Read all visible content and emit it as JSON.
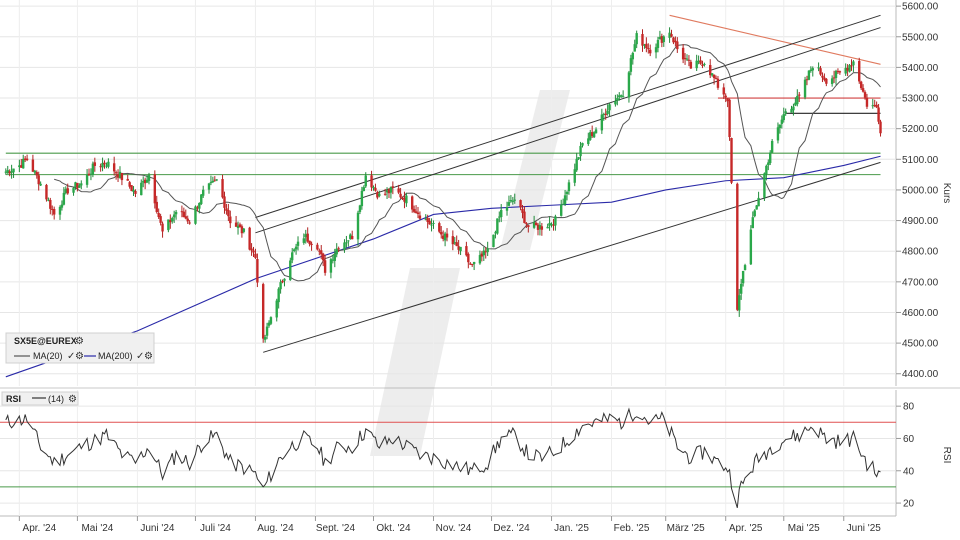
{
  "chart_data": [
    {
      "type": "candlestick",
      "instrument": "SX5E@EUREX",
      "ylabel": "Kurs",
      "ylim": [
        4360,
        5620
      ],
      "y_ticks": [
        "4400.00",
        "4500.00",
        "4600.00",
        "4700.00",
        "4800.00",
        "4900.00",
        "5000.00",
        "5100.00",
        "5200.00",
        "5300.00",
        "5400.00",
        "5500.00",
        "5600.00"
      ],
      "x_ticks": [
        "Apr. '24",
        "Mai '24",
        "Juni '24",
        "Juli '24",
        "Aug. '24",
        "Sept. '24",
        "Okt. '24",
        "Nov. '24",
        "Dez. '24",
        "Jan. '25",
        "Feb. '25",
        "März '25",
        "Apr. '25",
        "Mai '25",
        "Juni '25"
      ],
      "legend": [
        {
          "label": "MA(20)",
          "color": "#555555"
        },
        {
          "label": "MA(200)",
          "color": "#2a2aa8"
        }
      ],
      "price_path": [
        [
          "2024-03-25",
          5060
        ],
        [
          "2024-04-01",
          5080
        ],
        [
          "2024-04-05",
          5100
        ],
        [
          "2024-04-12",
          5020
        ],
        [
          "2024-04-19",
          4920
        ],
        [
          "2024-04-26",
          5000
        ],
        [
          "2024-05-03",
          5020
        ],
        [
          "2024-05-10",
          5080
        ],
        [
          "2024-05-16",
          5090
        ],
        [
          "2024-05-24",
          5040
        ],
        [
          "2024-05-31",
          4990
        ],
        [
          "2024-06-07",
          5050
        ],
        [
          "2024-06-14",
          4860
        ],
        [
          "2024-06-21",
          4930
        ],
        [
          "2024-06-28",
          4900
        ],
        [
          "2024-07-05",
          4990
        ],
        [
          "2024-07-12",
          5030
        ],
        [
          "2024-07-19",
          4900
        ],
        [
          "2024-07-26",
          4860
        ],
        [
          "2024-08-01",
          4780
        ],
        [
          "2024-08-05",
          4500
        ],
        [
          "2024-08-12",
          4650
        ],
        [
          "2024-08-19",
          4780
        ],
        [
          "2024-08-26",
          4850
        ],
        [
          "2024-09-02",
          4820
        ],
        [
          "2024-09-06",
          4740
        ],
        [
          "2024-09-13",
          4820
        ],
        [
          "2024-09-20",
          4850
        ],
        [
          "2024-09-27",
          5050
        ],
        [
          "2024-10-04",
          4980
        ],
        [
          "2024-10-11",
          5000
        ],
        [
          "2024-10-18",
          4970
        ],
        [
          "2024-10-25",
          4920
        ],
        [
          "2024-11-01",
          4880
        ],
        [
          "2024-11-08",
          4840
        ],
        [
          "2024-11-15",
          4800
        ],
        [
          "2024-11-21",
          4750
        ],
        [
          "2024-11-29",
          4800
        ],
        [
          "2024-12-06",
          4930
        ],
        [
          "2024-12-13",
          4970
        ],
        [
          "2024-12-20",
          4880
        ],
        [
          "2024-12-27",
          4880
        ],
        [
          "2025-01-03",
          4900
        ],
        [
          "2025-01-10",
          5020
        ],
        [
          "2025-01-17",
          5150
        ],
        [
          "2025-01-24",
          5200
        ],
        [
          "2025-01-31",
          5280
        ],
        [
          "2025-02-07",
          5320
        ],
        [
          "2025-02-14",
          5500
        ],
        [
          "2025-02-21",
          5460
        ],
        [
          "2025-02-28",
          5500
        ],
        [
          "2025-03-03",
          5520
        ],
        [
          "2025-03-07",
          5460
        ],
        [
          "2025-03-14",
          5400
        ],
        [
          "2025-03-21",
          5420
        ],
        [
          "2025-03-28",
          5340
        ],
        [
          "2025-04-02",
          5300
        ],
        [
          "2025-04-07",
          4600
        ],
        [
          "2025-04-09",
          4700
        ],
        [
          "2025-04-16",
          4930
        ],
        [
          "2025-04-25",
          5150
        ],
        [
          "2025-05-02",
          5260
        ],
        [
          "2025-05-09",
          5300
        ],
        [
          "2025-05-16",
          5410
        ],
        [
          "2025-05-23",
          5360
        ],
        [
          "2025-05-30",
          5380
        ],
        [
          "2025-06-06",
          5420
        ],
        [
          "2025-06-13",
          5280
        ],
        [
          "2025-06-18",
          5270
        ],
        [
          "2025-06-20",
          5200
        ]
      ],
      "ma200_path": [
        [
          "2024-03-25",
          4390
        ],
        [
          "2024-06-01",
          4540
        ],
        [
          "2024-08-01",
          4710
        ],
        [
          "2024-10-01",
          4840
        ],
        [
          "2024-11-01",
          4920
        ],
        [
          "2024-12-01",
          4940
        ],
        [
          "2025-01-01",
          4950
        ],
        [
          "2025-02-01",
          4960
        ],
        [
          "2025-03-01",
          5000
        ],
        [
          "2025-04-01",
          5030
        ],
        [
          "2025-05-01",
          5040
        ],
        [
          "2025-06-01",
          5080
        ],
        [
          "2025-06-20",
          5110
        ]
      ],
      "resistance_lines": [
        {
          "color": "#e07a5f",
          "from": [
            "2025-03-03",
            5570
          ],
          "to": [
            "2025-06-20",
            5410
          ]
        },
        {
          "color": "#d04040",
          "from": [
            "2025-03-28",
            5300
          ],
          "to": [
            "2025-06-20",
            5300
          ]
        },
        {
          "color": "#222222",
          "from": [
            "2025-05-02",
            5250
          ],
          "to": [
            "2025-06-20",
            5250
          ]
        },
        {
          "color": "#4a9a4a",
          "from": [
            "2024-03-25",
            5120
          ],
          "to": [
            "2025-06-20",
            5120
          ]
        },
        {
          "color": "#4a9a4a",
          "from": [
            "2024-03-25",
            5050
          ],
          "to": [
            "2025-06-20",
            5050
          ]
        }
      ],
      "trend_channel": [
        {
          "from": [
            "2024-08-01",
            4910
          ],
          "to": [
            "2025-06-20",
            5570
          ]
        },
        {
          "from": [
            "2024-08-01",
            4860
          ],
          "to": [
            "2025-06-20",
            5530
          ]
        },
        {
          "from": [
            "2024-08-05",
            4470
          ],
          "to": [
            "2025-06-20",
            5090
          ]
        }
      ]
    },
    {
      "type": "line",
      "name": "RSI",
      "period_label": "(14)",
      "ylabel": "RSI",
      "ylim": [
        12,
        90
      ],
      "y_ticks": [
        "20",
        "40",
        "60",
        "80"
      ],
      "levels": [
        {
          "value": 70,
          "color": "#e05050"
        },
        {
          "value": 30,
          "color": "#4a9a4a"
        }
      ],
      "path": [
        [
          "2024-03-25",
          70
        ],
        [
          "2024-04-05",
          72
        ],
        [
          "2024-04-12",
          55
        ],
        [
          "2024-04-19",
          45
        ],
        [
          "2024-04-26",
          50
        ],
        [
          "2024-05-03",
          55
        ],
        [
          "2024-05-16",
          62
        ],
        [
          "2024-05-24",
          50
        ],
        [
          "2024-05-31",
          45
        ],
        [
          "2024-06-07",
          55
        ],
        [
          "2024-06-14",
          38
        ],
        [
          "2024-06-21",
          50
        ],
        [
          "2024-06-28",
          45
        ],
        [
          "2024-07-05",
          58
        ],
        [
          "2024-07-12",
          62
        ],
        [
          "2024-07-19",
          45
        ],
        [
          "2024-07-26",
          42
        ],
        [
          "2024-08-01",
          38
        ],
        [
          "2024-08-05",
          28
        ],
        [
          "2024-08-12",
          45
        ],
        [
          "2024-08-19",
          55
        ],
        [
          "2024-08-26",
          60
        ],
        [
          "2024-09-02",
          55
        ],
        [
          "2024-09-06",
          45
        ],
        [
          "2024-09-13",
          55
        ],
        [
          "2024-09-20",
          55
        ],
        [
          "2024-09-27",
          65
        ],
        [
          "2024-10-04",
          55
        ],
        [
          "2024-10-11",
          60
        ],
        [
          "2024-10-18",
          55
        ],
        [
          "2024-10-25",
          50
        ],
        [
          "2024-11-01",
          48
        ],
        [
          "2024-11-08",
          45
        ],
        [
          "2024-11-15",
          42
        ],
        [
          "2024-11-21",
          40
        ],
        [
          "2024-11-29",
          45
        ],
        [
          "2024-12-06",
          60
        ],
        [
          "2024-12-13",
          62
        ],
        [
          "2024-12-20",
          50
        ],
        [
          "2024-12-27",
          48
        ],
        [
          "2025-01-03",
          52
        ],
        [
          "2025-01-10",
          60
        ],
        [
          "2025-01-17",
          68
        ],
        [
          "2025-01-24",
          70
        ],
        [
          "2025-01-31",
          72
        ],
        [
          "2025-02-07",
          70
        ],
        [
          "2025-02-14",
          78
        ],
        [
          "2025-02-21",
          70
        ],
        [
          "2025-02-28",
          72
        ],
        [
          "2025-03-07",
          55
        ],
        [
          "2025-03-14",
          48
        ],
        [
          "2025-03-21",
          52
        ],
        [
          "2025-03-28",
          45
        ],
        [
          "2025-04-02",
          42
        ],
        [
          "2025-04-07",
          22
        ],
        [
          "2025-04-09",
          30
        ],
        [
          "2025-04-16",
          45
        ],
        [
          "2025-04-25",
          55
        ],
        [
          "2025-05-02",
          60
        ],
        [
          "2025-05-09",
          62
        ],
        [
          "2025-05-16",
          68
        ],
        [
          "2025-05-23",
          60
        ],
        [
          "2025-05-30",
          58
        ],
        [
          "2025-06-06",
          60
        ],
        [
          "2025-06-13",
          45
        ],
        [
          "2025-06-20",
          36
        ]
      ]
    }
  ]
}
